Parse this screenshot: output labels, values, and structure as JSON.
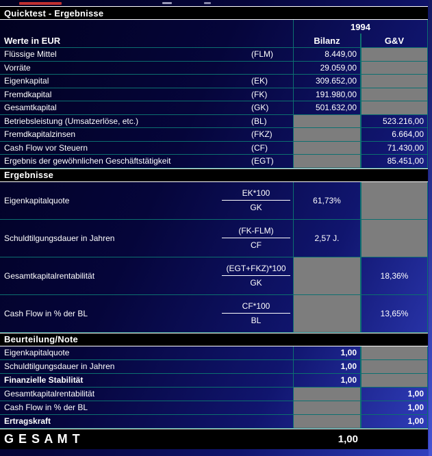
{
  "page": {
    "title_bar": "Quicktest - Ergebnisse"
  },
  "columns": {
    "year": "1994",
    "label": "Werte in EUR",
    "bilanz": "Bilanz",
    "guv": "G&V"
  },
  "values": {
    "rows": [
      {
        "label": "Flüssige Mittel",
        "code": "(FLM)",
        "bilanz": "8.449,00"
      },
      {
        "label": "Vorräte",
        "code": "",
        "bilanz": "29.059,00"
      },
      {
        "label": "Eigenkapital",
        "code": "(EK)",
        "bilanz": "309.652,00"
      },
      {
        "label": "Fremdkapital",
        "code": "(FK)",
        "bilanz": "191.980,00"
      },
      {
        "label": "Gesamtkapital",
        "code": "(GK)",
        "bilanz": "501.632,00"
      },
      {
        "label": "Betriebsleistung (Umsatzerlöse, etc.)",
        "code": "(BL)",
        "guv": "523.216,00"
      },
      {
        "label": "Fremdkapitalzinsen",
        "code": "(FKZ)",
        "guv": "6.664,00"
      },
      {
        "label": "Cash Flow vor Steuern",
        "code": "(CF)",
        "guv": "71.430,00"
      },
      {
        "label": "Ergebnis der gewöhnlichen Geschäftstätigkeit",
        "code": "(EGT)",
        "guv": "85.451,00"
      }
    ]
  },
  "ergebnisse": {
    "title": "Ergebnisse",
    "rows": [
      {
        "label": "Eigenkapitalquote",
        "numerator": "EK*100",
        "denominator": "GK",
        "bilanz": "61,73%"
      },
      {
        "label": "Schuldtilgungsdauer in Jahren",
        "numerator": "(FK-FLM)",
        "denominator": "CF",
        "bilanz": "2,57 J."
      },
      {
        "label": "Gesamtkapitalrentabilität",
        "numerator": "(EGT+FKZ)*100",
        "denominator": "GK",
        "guv": "18,36%"
      },
      {
        "label": "Cash Flow in % der BL",
        "numerator": "CF*100",
        "denominator": "BL",
        "guv": "13,65%"
      }
    ]
  },
  "beurteilung": {
    "title": "Beurteilung/Note",
    "rows": [
      {
        "label": "Eigenkapitalquote",
        "bilanz": "1,00"
      },
      {
        "label": "Schuldtilgungsdauer in Jahren",
        "bilanz": "1,00"
      },
      {
        "label": "Finanzielle Stabilität",
        "bilanz": "1,00"
      },
      {
        "label": "Gesamtkapitalrentabilität",
        "guv": "1,00"
      },
      {
        "label": "Cash Flow in % der BL",
        "guv": "1,00"
      },
      {
        "label": "Ertragskraft",
        "guv": "1,00"
      }
    ]
  },
  "gesamt": {
    "label": "G E S A M T",
    "value": "1,00"
  },
  "colors": {
    "accent_teal": "#0c7070",
    "cell_gray": "#7d7d7d",
    "bar_black": "#000000"
  }
}
